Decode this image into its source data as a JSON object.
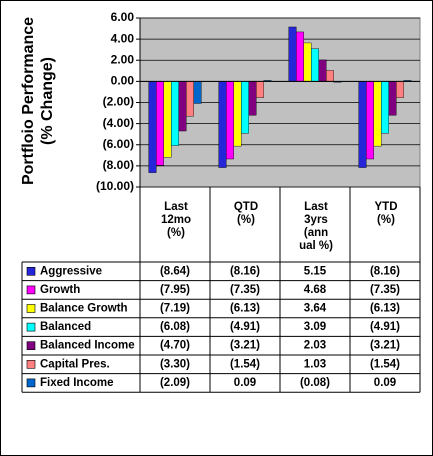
{
  "chart_data": {
    "type": "bar",
    "y_label": "Portfloio Performance (% Change)",
    "categories": [
      "Last 12mo (%)",
      "QTD (%)",
      "Last 3yrs (ann ual %)",
      "YTD (%)"
    ],
    "ylim": [
      -10,
      6
    ],
    "yticks": [
      {
        "value": 6,
        "label": "6.00"
      },
      {
        "value": 4,
        "label": "4.00"
      },
      {
        "value": 2,
        "label": "2.00"
      },
      {
        "value": 0,
        "label": "0.00"
      },
      {
        "value": -2,
        "label": "(2.00)"
      },
      {
        "value": -4,
        "label": "(4.00)"
      },
      {
        "value": -6,
        "label": "(6.00)"
      },
      {
        "value": -8,
        "label": "(8.00)"
      },
      {
        "value": -10,
        "label": "(10.00)"
      }
    ],
    "grid": true,
    "series": [
      {
        "name": "Aggressive",
        "color": "#2626d9",
        "values": [
          -8.64,
          -8.16,
          5.15,
          -8.16
        ],
        "value_labels": [
          "(8.64)",
          "(8.16)",
          "5.15",
          "(8.16)"
        ]
      },
      {
        "name": "Growth",
        "color": "#ff00ff",
        "values": [
          -7.95,
          -7.35,
          4.68,
          -7.35
        ],
        "value_labels": [
          "(7.95)",
          "(7.35)",
          "4.68",
          "(7.35)"
        ]
      },
      {
        "name": "Balance Growth",
        "color": "#ffff00",
        "values": [
          -7.19,
          -6.13,
          3.64,
          -6.13
        ],
        "value_labels": [
          "(7.19)",
          "(6.13)",
          "3.64",
          "(6.13)"
        ]
      },
      {
        "name": "Balanced",
        "color": "#00ffff",
        "values": [
          -6.08,
          -4.91,
          3.09,
          -4.91
        ],
        "value_labels": [
          "(6.08)",
          "(4.91)",
          "3.09",
          "(4.91)"
        ]
      },
      {
        "name": "Balanced Income",
        "color": "#800080",
        "values": [
          -4.7,
          -3.21,
          2.03,
          -3.21
        ],
        "value_labels": [
          "(4.70)",
          "(3.21)",
          "2.03",
          "(3.21)"
        ]
      },
      {
        "name": "Capital Pres.",
        "color": "#ff8080",
        "values": [
          -3.3,
          -1.54,
          1.03,
          -1.54
        ],
        "value_labels": [
          "(3.30)",
          "(1.54)",
          "1.03",
          "(1.54)"
        ]
      },
      {
        "name": "Fixed Income",
        "color": "#0066cc",
        "values": [
          -2.09,
          0.09,
          -0.08,
          0.09
        ],
        "value_labels": [
          "(2.09)",
          "0.09",
          "(0.08)",
          "0.09"
        ]
      }
    ]
  }
}
